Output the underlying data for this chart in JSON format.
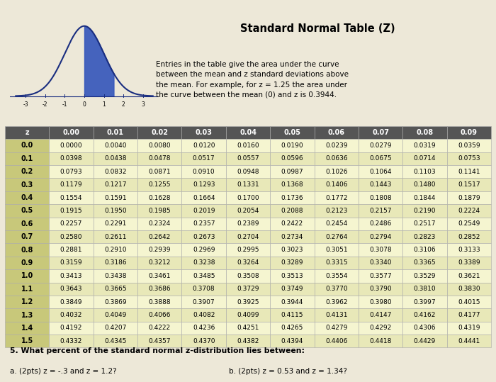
{
  "title": "Standard Normal Table (Z)",
  "description_lines": [
    "Entries in the table give the area under the curve",
    "between the mean and z standard deviations above",
    "the mean. For example, for z = 1.25 the area under",
    "the curve between the mean (0) and z is 0.3944."
  ],
  "col_headers": [
    "0.00",
    "0.01",
    "0.02",
    "0.03",
    "0.04",
    "0.05",
    "0.06",
    "0.07",
    "0.08",
    "0.09"
  ],
  "row_headers": [
    "0.0",
    "0.1",
    "0.2",
    "0.3",
    "0.4",
    "0.5",
    "0.6",
    "0.7",
    "0.8",
    "0.9",
    "1.0",
    "1.1",
    "1.2",
    "1.3",
    "1.4",
    "1.5"
  ],
  "table_data": [
    [
      "0.0000",
      "0.0040",
      "0.0080",
      "0.0120",
      "0.0160",
      "0.0190",
      "0.0239",
      "0.0279",
      "0.0319",
      "0.0359"
    ],
    [
      "0.0398",
      "0.0438",
      "0.0478",
      "0.0517",
      "0.0557",
      "0.0596",
      "0.0636",
      "0.0675",
      "0.0714",
      "0.0753"
    ],
    [
      "0.0793",
      "0.0832",
      "0.0871",
      "0.0910",
      "0.0948",
      "0.0987",
      "0.1026",
      "0.1064",
      "0.1103",
      "0.1141"
    ],
    [
      "0.1179",
      "0.1217",
      "0.1255",
      "0.1293",
      "0.1331",
      "0.1368",
      "0.1406",
      "0.1443",
      "0.1480",
      "0.1517"
    ],
    [
      "0.1554",
      "0.1591",
      "0.1628",
      "0.1664",
      "0.1700",
      "0.1736",
      "0.1772",
      "0.1808",
      "0.1844",
      "0.1879"
    ],
    [
      "0.1915",
      "0.1950",
      "0.1985",
      "0.2019",
      "0.2054",
      "0.2088",
      "0.2123",
      "0.2157",
      "0.2190",
      "0.2224"
    ],
    [
      "0.2257",
      "0.2291",
      "0.2324",
      "0.2357",
      "0.2389",
      "0.2422",
      "0.2454",
      "0.2486",
      "0.2517",
      "0.2549"
    ],
    [
      "0.2580",
      "0.2611",
      "0.2642",
      "0.2673",
      "0.2704",
      "0.2734",
      "0.2764",
      "0.2794",
      "0.2823",
      "0.2852"
    ],
    [
      "0.2881",
      "0.2910",
      "0.2939",
      "0.2969",
      "0.2995",
      "0.3023",
      "0.3051",
      "0.3078",
      "0.3106",
      "0.3133"
    ],
    [
      "0.3159",
      "0.3186",
      "0.3212",
      "0.3238",
      "0.3264",
      "0.3289",
      "0.3315",
      "0.3340",
      "0.3365",
      "0.3389"
    ],
    [
      "0.3413",
      "0.3438",
      "0.3461",
      "0.3485",
      "0.3508",
      "0.3513",
      "0.3554",
      "0.3577",
      "0.3529",
      "0.3621"
    ],
    [
      "0.3643",
      "0.3665",
      "0.3686",
      "0.3708",
      "0.3729",
      "0.3749",
      "0.3770",
      "0.3790",
      "0.3810",
      "0.3830"
    ],
    [
      "0.3849",
      "0.3869",
      "0.3888",
      "0.3907",
      "0.3925",
      "0.3944",
      "0.3962",
      "0.3980",
      "0.3997",
      "0.4015"
    ],
    [
      "0.4032",
      "0.4049",
      "0.4066",
      "0.4082",
      "0.4099",
      "0.4115",
      "0.4131",
      "0.4147",
      "0.4162",
      "0.4177"
    ],
    [
      "0.4192",
      "0.4207",
      "0.4222",
      "0.4236",
      "0.4251",
      "0.4265",
      "0.4279",
      "0.4292",
      "0.4306",
      "0.4319"
    ],
    [
      "0.4332",
      "0.4345",
      "0.4357",
      "0.4370",
      "0.4382",
      "0.4394",
      "0.4406",
      "0.4418",
      "0.4429",
      "0.4441"
    ]
  ],
  "header_bg": "#555555",
  "header_fg": "#ffffff",
  "row_header_bg": "#c8c87a",
  "data_bg_even": "#f5f5d0",
  "data_bg_odd": "#e8e8b8",
  "footer_text": "5. What percent of the standard normal z-distribution lies between:",
  "footer_a": "a. (2pts) z = -.3 and z = 1.2?",
  "footer_b": "b. (2pts) z = 0.53 and z = 1.34?",
  "bg_color": "#ede8d8",
  "curve_color": "#1a2e80",
  "fill_color": "#3355bb",
  "ticks": [
    -3,
    -2,
    -1,
    0,
    1,
    2,
    3
  ],
  "tick_labels": [
    "-3",
    "-2",
    "-1",
    "0",
    "1",
    "2",
    "3"
  ]
}
